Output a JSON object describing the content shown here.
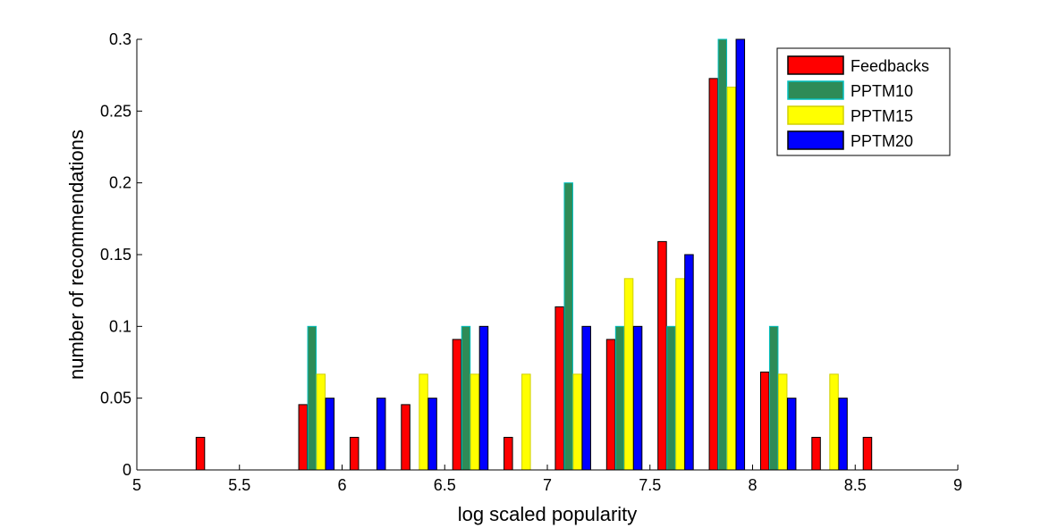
{
  "chart_data": {
    "type": "bar",
    "xlabel": "log scaled popularity",
    "ylabel": "number of recommendations",
    "xlim": [
      5,
      9
    ],
    "ylim": [
      0,
      0.3
    ],
    "xticks": [
      "5",
      "5.5",
      "6",
      "6.5",
      "7",
      "7.5",
      "8",
      "8.5",
      "9"
    ],
    "yticks": [
      "0",
      "0.05",
      "0.1",
      "0.15",
      "0.2",
      "0.25",
      "0.3"
    ],
    "bin_centers": [
      5.125,
      5.375,
      5.625,
      5.875,
      6.125,
      6.375,
      6.625,
      6.875,
      7.125,
      7.375,
      7.625,
      7.875,
      8.125,
      8.375,
      8.625,
      8.875
    ],
    "legend_position": "top-right",
    "grid": false,
    "series": [
      {
        "name": "Feedbacks",
        "color": "#ff0000",
        "edge": "#000000",
        "values": [
          0,
          0.0227,
          0,
          0.0455,
          0.0227,
          0.0455,
          0.0909,
          0.0227,
          0.1136,
          0.0909,
          0.1591,
          0.2727,
          0.0682,
          0.0227,
          0.0227,
          0
        ]
      },
      {
        "name": "PPTM10",
        "color": "#2e8b57",
        "edge": "#00bfbf",
        "values": [
          0,
          0,
          0,
          0.1,
          0,
          0,
          0.1,
          0,
          0.2,
          0.1,
          0.1,
          0.3,
          0.1,
          0,
          0,
          0
        ]
      },
      {
        "name": "PPTM15",
        "color": "#ffff00",
        "edge": "#d0d000",
        "values": [
          0,
          0,
          0,
          0.0667,
          0,
          0.0667,
          0.0667,
          0.0667,
          0.0667,
          0.1333,
          0.1333,
          0.2667,
          0.0667,
          0.0667,
          0,
          0
        ]
      },
      {
        "name": "PPTM20",
        "color": "#0000ff",
        "edge": "#000000",
        "values": [
          0,
          0,
          0,
          0.05,
          0.05,
          0.05,
          0.1,
          0,
          0.1,
          0.1,
          0.15,
          0.3,
          0.05,
          0.05,
          0,
          0
        ]
      }
    ]
  }
}
